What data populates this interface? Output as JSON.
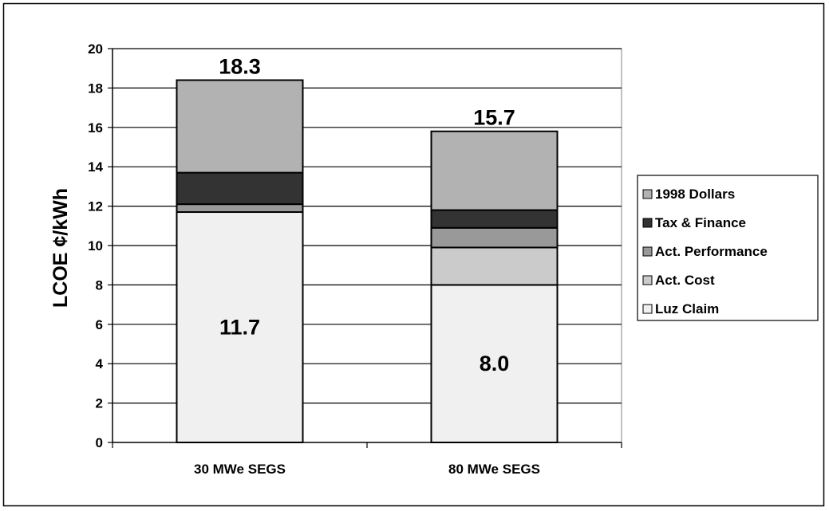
{
  "chart_data": {
    "type": "bar",
    "stacked": true,
    "categories": [
      "30 MWe SEGS",
      "80 MWe SEGS"
    ],
    "series": [
      {
        "name": "Luz Claim",
        "values": [
          11.7,
          8.0
        ],
        "color": "#f0f0f0"
      },
      {
        "name": "Act. Cost",
        "values": [
          0.0,
          1.9
        ],
        "color": "#cbcbcb"
      },
      {
        "name": "Act. Performance",
        "values": [
          0.4,
          1.0
        ],
        "color": "#999999"
      },
      {
        "name": "Tax & Finance",
        "values": [
          1.6,
          0.9
        ],
        "color": "#333333"
      },
      {
        "name": "1998 Dollars",
        "values": [
          4.7,
          4.0
        ],
        "color": "#b2b2b2"
      }
    ],
    "totals": [
      "18.3",
      "15.7"
    ],
    "base_labels": [
      "11.7",
      "8.0"
    ],
    "title": "",
    "xlabel": "",
    "ylabel": "LCOE ¢/kWh",
    "ylim": [
      0,
      20
    ],
    "yticks": [
      "0",
      "2",
      "4",
      "6",
      "8",
      "10",
      "12",
      "14",
      "16",
      "18",
      "20"
    ],
    "grid": true,
    "legend_position": "right",
    "legend_order": [
      "1998 Dollars",
      "Tax & Finance",
      "Act. Performance",
      "Act. Cost",
      "Luz Claim"
    ]
  }
}
